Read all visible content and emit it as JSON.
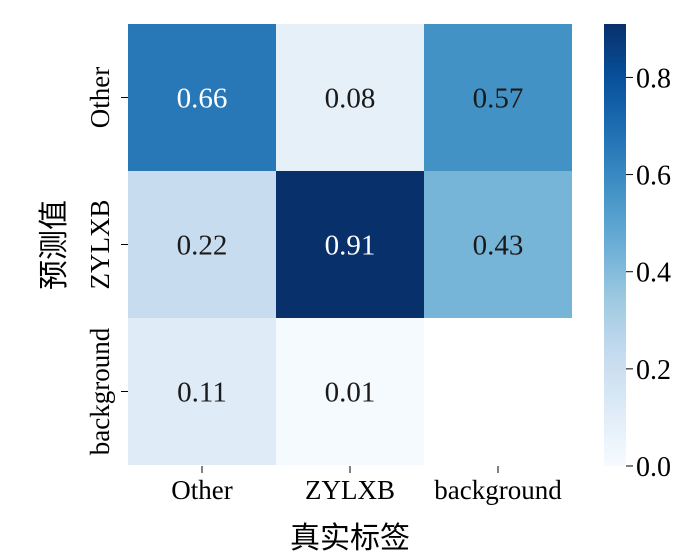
{
  "chart_data": {
    "type": "heatmap",
    "title": "",
    "xlabel": "真实标签",
    "ylabel": "预测值",
    "x_categories": [
      "Other",
      "ZYLXB",
      "background"
    ],
    "y_categories": [
      "Other",
      "ZYLXB",
      "background"
    ],
    "values": [
      [
        0.66,
        0.08,
        0.57
      ],
      [
        0.22,
        0.91,
        0.43
      ],
      [
        0.11,
        0.01,
        null
      ]
    ],
    "cell_labels": [
      [
        "0.66",
        "0.08",
        "0.57"
      ],
      [
        "0.22",
        "0.91",
        "0.43"
      ],
      [
        "0.11",
        "0.01",
        ""
      ]
    ],
    "colorbar": {
      "vmin": 0.0,
      "vmax": 0.91,
      "ticks": [
        0.0,
        0.2,
        0.4,
        0.6,
        0.8
      ],
      "tick_labels": [
        "0.0",
        "0.2",
        "0.4",
        "0.6",
        "0.8"
      ]
    },
    "colormap": "Blues"
  }
}
